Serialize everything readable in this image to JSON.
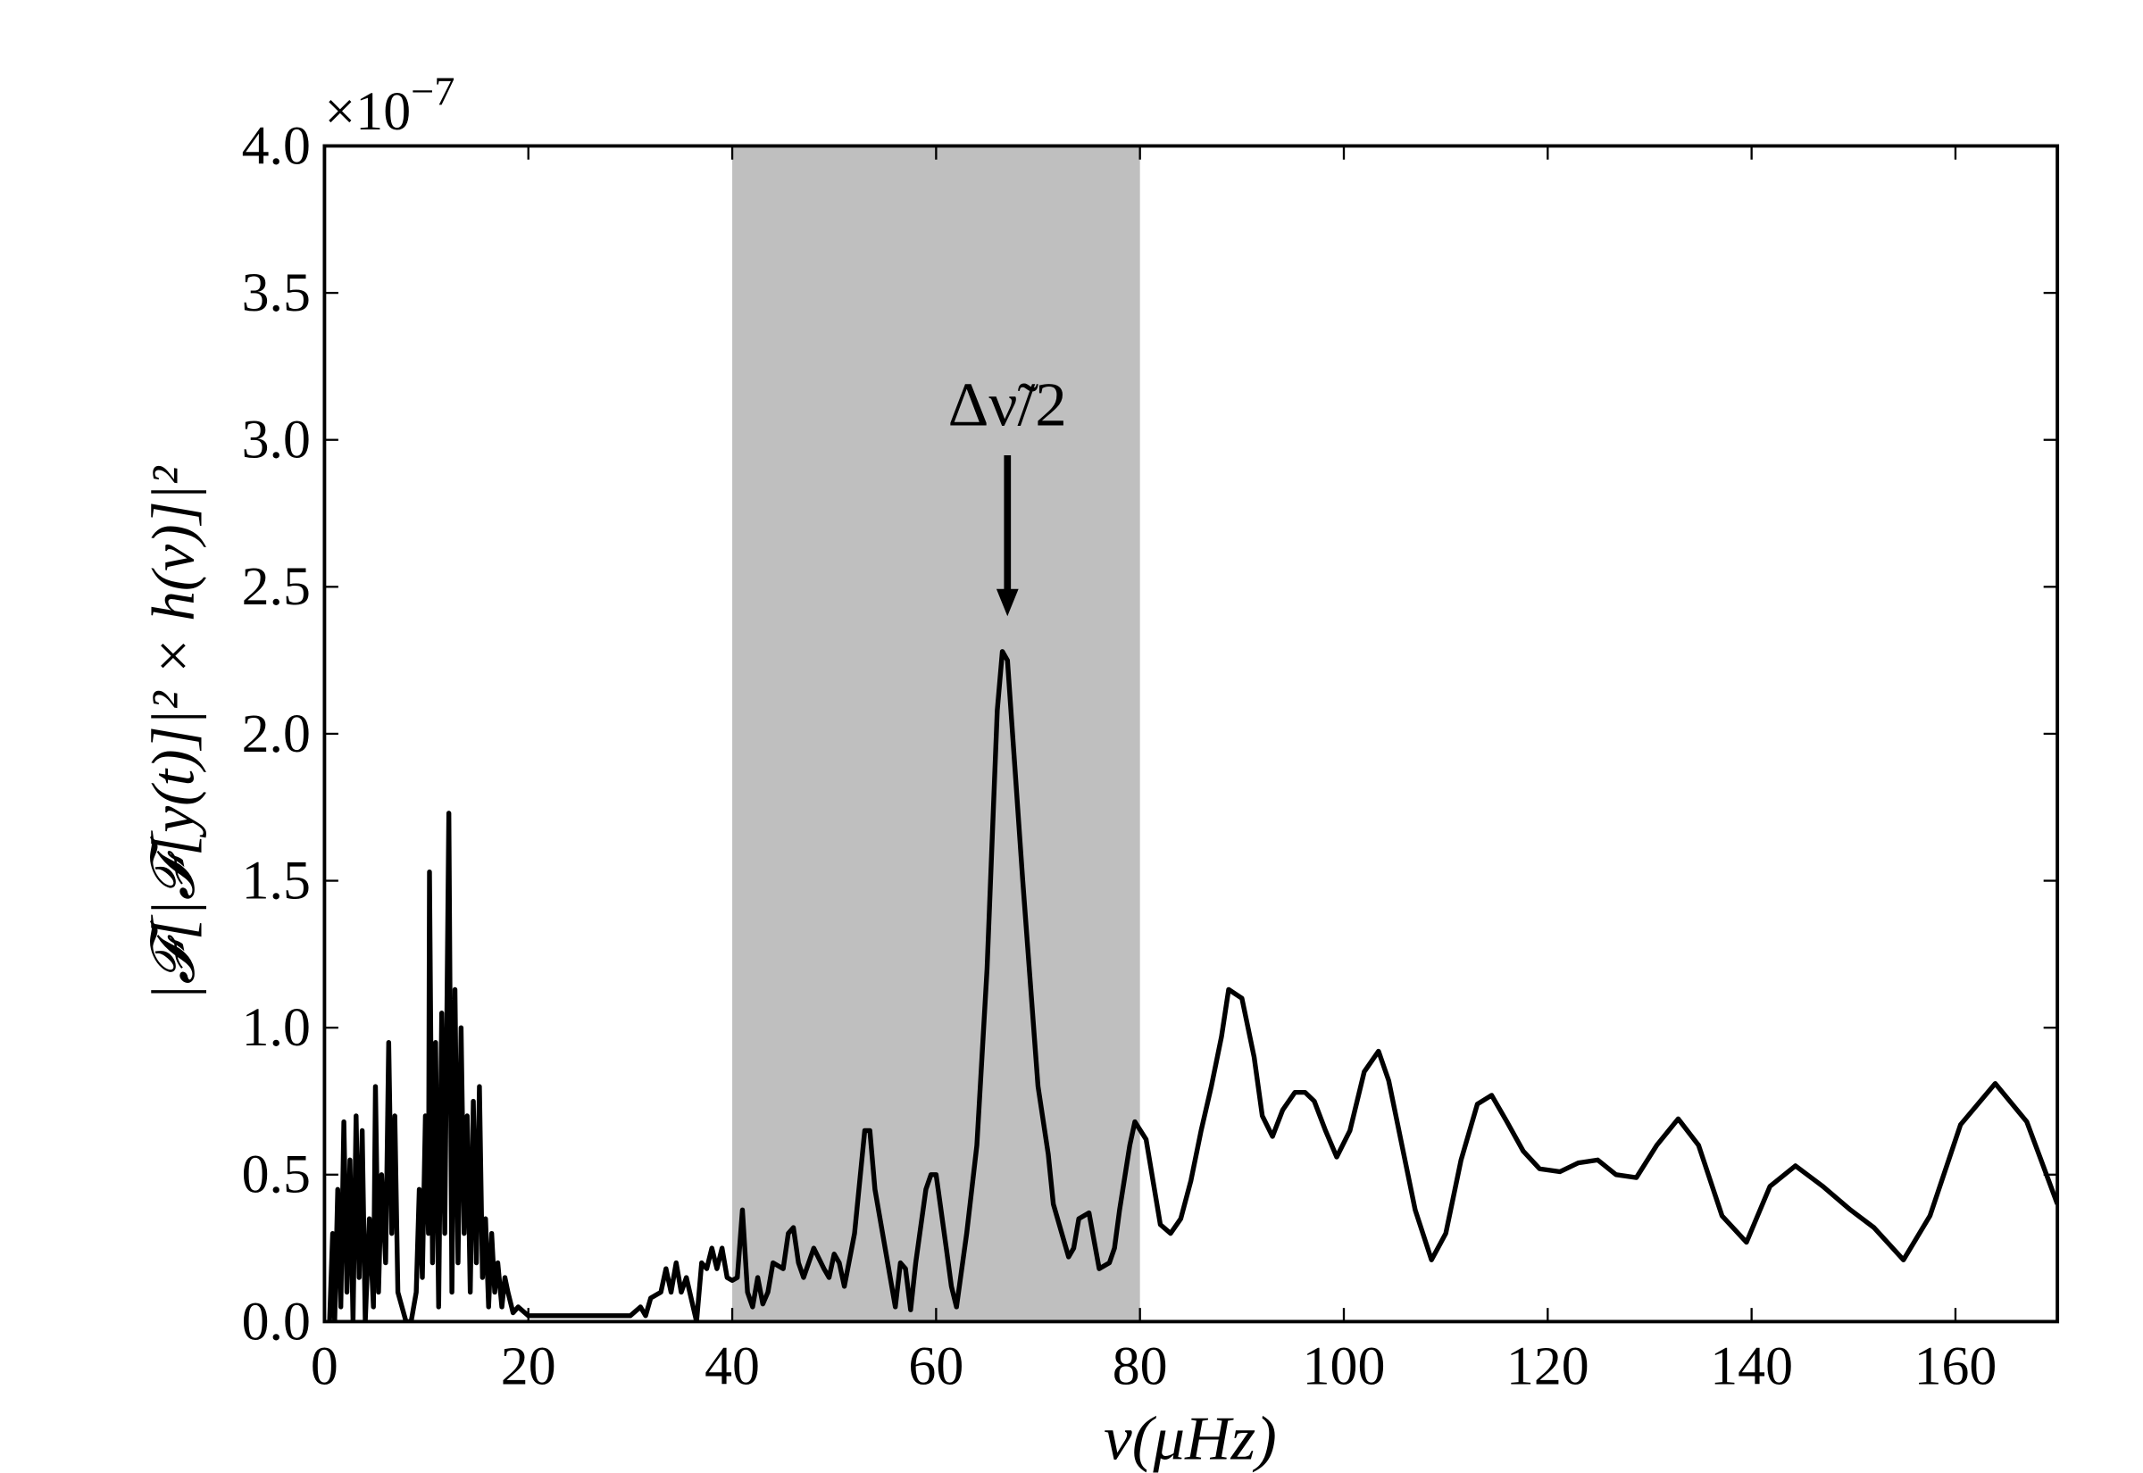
{
  "chart_data": {
    "type": "line",
    "xlabel": "ν(μHz)",
    "ylabel": "|𝓕[|𝓕[y(t)]|² × h(ν)]|²",
    "offset_label": {
      "base": "×10",
      "exponent": "−7"
    },
    "annotation": {
      "text": "Δν̃/2",
      "x": 67,
      "y": 2.4
    },
    "shade": [
      40,
      80
    ],
    "shade_color": "#bfbfbf",
    "color": "#000000",
    "xlim": [
      0,
      170
    ],
    "ylim": [
      0,
      4
    ],
    "xticks": [
      0,
      20,
      40,
      60,
      80,
      100,
      120,
      140,
      160
    ],
    "yticks": [
      {
        "value": 0,
        "label": "0.0"
      },
      0.5,
      {
        "value": 1,
        "label": "1.0"
      },
      1.5,
      {
        "value": 2,
        "label": "2.0"
      },
      2.5,
      {
        "value": 3,
        "label": "3.0"
      },
      3.5,
      {
        "value": 4,
        "label": "4.0"
      }
    ],
    "x": [
      0.5,
      0.8,
      1.0,
      1.3,
      1.6,
      1.9,
      2.2,
      2.5,
      2.8,
      3.1,
      3.4,
      3.7,
      4.0,
      4.4,
      4.8,
      5.0,
      5.3,
      5.6,
      6.0,
      6.3,
      6.6,
      6.9,
      7.2,
      7.6,
      8.0,
      8.5,
      9.0,
      9.3,
      9.6,
      9.9,
      10.2,
      10.3,
      10.6,
      10.9,
      11.2,
      11.5,
      11.8,
      12.2,
      12.5,
      12.8,
      13.1,
      13.4,
      13.7,
      14.0,
      14.3,
      14.6,
      14.9,
      15.2,
      15.5,
      15.8,
      16.1,
      16.4,
      16.7,
      17.0,
      17.4,
      17.7,
      18.0,
      18.5,
      19,
      20,
      25,
      30,
      31,
      31.5,
      32,
      33,
      33.5,
      34,
      34.5,
      35,
      35.5,
      36.5,
      37,
      37.5,
      38,
      38.5,
      39,
      39.5,
      40,
      40.5,
      41,
      41.5,
      42,
      42.5,
      43,
      43.5,
      44,
      45,
      45.5,
      46,
      46.5,
      47,
      48,
      49,
      49.5,
      50,
      50.5,
      51,
      52,
      53,
      53.5,
      54,
      55,
      56,
      56.5,
      57,
      57.5,
      58,
      59,
      59.5,
      60,
      61,
      61.5,
      62,
      63,
      64,
      65,
      66,
      66.5,
      67,
      67.5,
      68.5,
      70,
      71,
      71.5,
      73,
      73.5,
      74,
      75,
      76,
      77,
      77.5,
      78,
      79,
      79.5,
      80.6,
      82,
      83,
      84,
      85,
      86,
      87,
      88,
      88.7,
      90,
      91.2,
      92,
      93,
      94,
      95.2,
      96.2,
      97.1,
      98.2,
      99.3,
      100.6,
      102,
      103.4,
      104.4,
      105.7,
      107,
      108.6,
      110,
      111.5,
      113.1,
      114.5,
      116,
      117.6,
      119.2,
      121.2,
      123,
      124.9,
      126.7,
      128.7,
      130.7,
      132.8,
      134.8,
      137.1,
      139.5,
      141.8,
      144.3,
      147,
      149.7,
      152,
      154.9,
      157.5,
      160.5,
      163.9,
      167,
      170
    ],
    "values": [
      0,
      0.3,
      0,
      0.45,
      0.05,
      0.68,
      0.1,
      0.55,
      0,
      0.7,
      0.15,
      0.65,
      0,
      0.35,
      0.05,
      0.8,
      0.1,
      0.5,
      0.2,
      0.95,
      0.3,
      0.7,
      0.1,
      0.05,
      0,
      0,
      0.1,
      0.45,
      0.15,
      0.7,
      0.3,
      1.53,
      0.2,
      0.95,
      0.05,
      1.05,
      0.3,
      1.73,
      0.1,
      1.13,
      0.2,
      1.0,
      0.3,
      0.7,
      0.1,
      0.75,
      0.2,
      0.8,
      0.15,
      0.35,
      0.05,
      0.3,
      0.1,
      0.2,
      0.05,
      0.15,
      0.1,
      0.03,
      0.05,
      0.02,
      0.02,
      0.02,
      0.05,
      0.02,
      0.08,
      0.1,
      0.18,
      0.1,
      0.2,
      0.1,
      0.15,
      0,
      0.2,
      0.18,
      0.25,
      0.18,
      0.25,
      0.15,
      0.14,
      0.15,
      0.38,
      0.1,
      0.05,
      0.15,
      0.06,
      0.1,
      0.2,
      0.18,
      0.3,
      0.32,
      0.2,
      0.15,
      0.25,
      0.18,
      0.15,
      0.23,
      0.2,
      0.12,
      0.3,
      0.65,
      0.65,
      0.45,
      0.25,
      0.05,
      0.2,
      0.18,
      0.04,
      0.2,
      0.45,
      0.5,
      0.5,
      0.25,
      0.12,
      0.05,
      0.3,
      0.6,
      1.2,
      2.08,
      2.28,
      2.25,
      2.0,
      1.5,
      0.8,
      0.57,
      0.4,
      0.22,
      0.25,
      0.35,
      0.37,
      0.18,
      0.2,
      0.25,
      0.38,
      0.6,
      0.68,
      0.62,
      0.33,
      0.3,
      0.35,
      0.48,
      0.65,
      0.8,
      0.97,
      1.13,
      1.1,
      0.9,
      0.7,
      0.63,
      0.72,
      0.78,
      0.78,
      0.75,
      0.65,
      0.56,
      0.65,
      0.85,
      0.92,
      0.82,
      0.6,
      0.38,
      0.21,
      0.3,
      0.55,
      0.74,
      0.77,
      0.68,
      0.58,
      0.52,
      0.51,
      0.54,
      0.55,
      0.5,
      0.49,
      0.6,
      0.69,
      0.6,
      0.36,
      0.27,
      0.46,
      0.53,
      0.46,
      0.38,
      0.32,
      0.21,
      0.36,
      0.67,
      0.81,
      0.68,
      0.4
    ]
  }
}
